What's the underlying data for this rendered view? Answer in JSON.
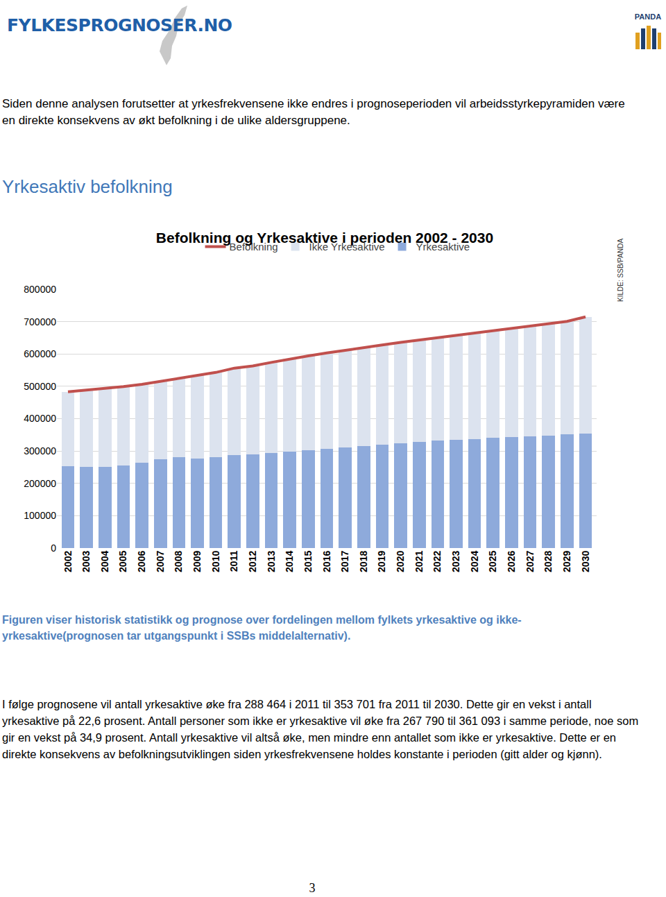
{
  "header": {
    "logo": "FYLKESPROGNOSER.NO",
    "badge": "PANDA"
  },
  "intro": "Siden denne analysen forutsetter at yrkesfrekvensene ikke endres i prognoseperioden vil arbeidsstyrkepyramiden være en direkte konsekvens av økt befolkning i de ulike aldersgruppene.",
  "heading": "Yrkesaktiv befolkning",
  "chart_data": {
    "type": "bar",
    "stacked": true,
    "title": "Befolkning og Yrkesaktive i perioden 2002 - 2030",
    "annotations": [
      "KILDE: SSB/PANDA"
    ],
    "categories": [
      "2002",
      "2003",
      "2004",
      "2005",
      "2006",
      "2007",
      "2008",
      "2009",
      "2010",
      "2011",
      "2012",
      "2013",
      "2014",
      "2015",
      "2016",
      "2017",
      "2018",
      "2019",
      "2020",
      "2021",
      "2022",
      "2023",
      "2024",
      "2025",
      "2026",
      "2027",
      "2028",
      "2029",
      "2030"
    ],
    "series": [
      {
        "name": "Yrkesaktive",
        "type": "bar",
        "color": "#8eaadb",
        "values": [
          253000,
          251000,
          251000,
          256000,
          264000,
          275000,
          281000,
          276000,
          280000,
          288464,
          289000,
          294000,
          298000,
          303000,
          307000,
          312000,
          316000,
          320000,
          324000,
          328000,
          332000,
          334000,
          337000,
          341000,
          343000,
          346000,
          348000,
          351000,
          353701
        ]
      },
      {
        "name": "Ikke Yrkesaktive",
        "type": "bar",
        "color": "#dce3ef",
        "values": [
          230000,
          237000,
          242000,
          243000,
          242000,
          240000,
          244000,
          258000,
          263000,
          267790,
          274000,
          280000,
          287000,
          291000,
          296000,
          300000,
          304000,
          308000,
          312000,
          315000,
          319000,
          324000,
          328000,
          332000,
          337000,
          341000,
          346000,
          350000,
          361093
        ]
      },
      {
        "name": "Befolkning",
        "type": "line",
        "color": "#c0504d",
        "values": [
          483000,
          488000,
          493000,
          499000,
          506000,
          515000,
          525000,
          534000,
          543000,
          556254,
          563000,
          574000,
          585000,
          594000,
          603000,
          612000,
          620000,
          628000,
          636000,
          643000,
          651000,
          658000,
          665000,
          673000,
          680000,
          687000,
          694000,
          701000,
          714794
        ]
      }
    ],
    "ylim": [
      0,
      800000
    ],
    "yticks": [
      0,
      100000,
      200000,
      300000,
      400000,
      500000,
      600000,
      700000,
      800000
    ],
    "grid": true,
    "legend": "top"
  },
  "caption": "Figuren viser historisk statistikk og prognose over fordelingen mellom fylkets yrkesaktive og ikke-yrkesaktive(prognosen tar utgangspunkt i SSBs middelalternativ).",
  "body": "I følge prognosene vil antall yrkesaktive øke fra 288 464 i 2011 til 353 701 fra 2011 til 2030. Dette gir en vekst i antall yrkesaktive på 22,6 prosent. Antall personer som ikke er yrkesaktive vil øke fra 267 790 til 361 093 i samme periode, noe som gir en vekst på 34,9 prosent. Antall yrkesaktive vil altså øke, men mindre enn antallet som ikke er yrkesaktive. Dette er en direkte konsekvens av befolkningsutviklingen siden yrkesfrekvensene holdes konstante i perioden (gitt alder og kjønn).",
  "page_number": "3"
}
